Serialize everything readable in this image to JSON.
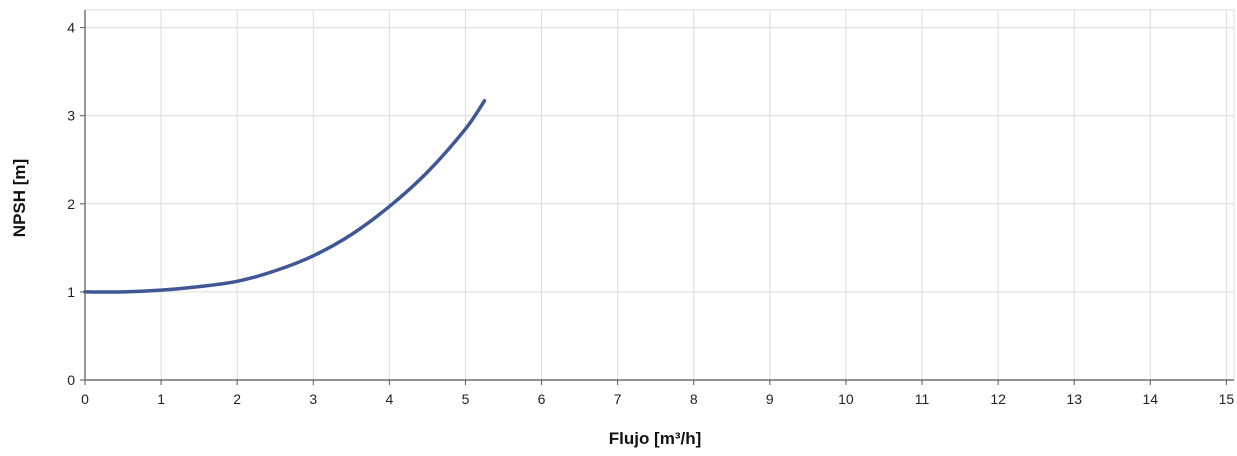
{
  "chart_data": {
    "type": "line",
    "title": "",
    "xlabel": "Flujo [m³/h]",
    "ylabel": "NPSH [m]",
    "xlim": [
      0,
      15.1
    ],
    "ylim": [
      0,
      4.2
    ],
    "x_ticks": [
      0,
      1,
      2,
      3,
      4,
      5,
      6,
      7,
      8,
      9,
      10,
      11,
      12,
      13,
      14,
      15
    ],
    "y_ticks": [
      0,
      1,
      2,
      3,
      4
    ],
    "grid": true,
    "colors": {
      "series": "#3f5795",
      "grid": "#dcdcdc",
      "axis": "#555555"
    },
    "series": [
      {
        "x": [
          0,
          0.5,
          1,
          1.5,
          2,
          2.5,
          3,
          3.5,
          4,
          4.5,
          5,
          5.25
        ],
        "values": [
          1.0,
          1.0,
          1.02,
          1.06,
          1.12,
          1.24,
          1.41,
          1.65,
          1.97,
          2.36,
          2.85,
          3.17
        ]
      }
    ]
  }
}
